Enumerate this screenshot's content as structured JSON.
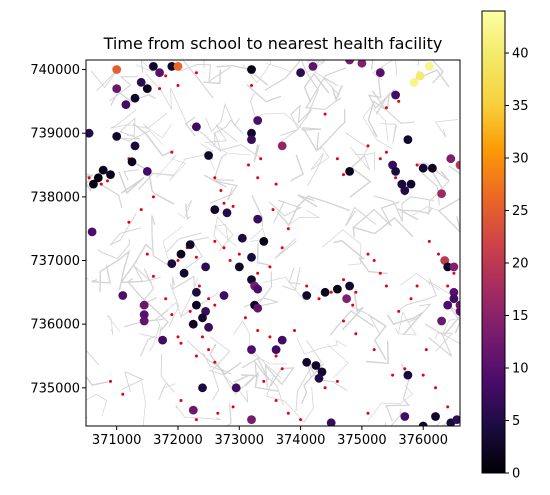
{
  "chart_data": {
    "type": "scatter",
    "title": "Time from school to nearest health facility",
    "xlabel": "",
    "ylabel": "",
    "xlim": [
      370500,
      376600
    ],
    "ylim": [
      734400,
      740150
    ],
    "xticks": [
      371000,
      372000,
      373000,
      374000,
      375000,
      376000
    ],
    "xtick_labels": [
      "371000",
      "372000",
      "373000",
      "374000",
      "375000",
      "376000"
    ],
    "yticks": [
      735000,
      736000,
      737000,
      738000,
      739000,
      740000
    ],
    "ytick_labels": [
      "735000",
      "736000",
      "737000",
      "738000",
      "739000",
      "740000"
    ],
    "background": "road network basemap (light grey)",
    "colorbar": {
      "colormap": "inferno",
      "range": [
        0,
        44
      ],
      "ticks": [
        0,
        5,
        10,
        15,
        20,
        25,
        30,
        35,
        40
      ],
      "tick_labels": [
        "0",
        "5",
        "10",
        "15",
        "20",
        "25",
        "30",
        "35",
        "40"
      ]
    },
    "health_facility_color": "#e8000b",
    "schools": [
      [
        371000,
        738950,
        3
      ],
      [
        370900,
        738350,
        2
      ],
      [
        370780,
        738420,
        2
      ],
      [
        370700,
        738300,
        1
      ],
      [
        370620,
        738200,
        1
      ],
      [
        370550,
        739000,
        5
      ],
      [
        370600,
        737450,
        9
      ],
      [
        371000,
        739700,
        12
      ],
      [
        371000,
        740000,
        25
      ],
      [
        371100,
        736450,
        9
      ],
      [
        371150,
        739450,
        8
      ],
      [
        371300,
        739550,
        3
      ],
      [
        371300,
        738800,
        4
      ],
      [
        371250,
        738550,
        2
      ],
      [
        371400,
        739800,
        6
      ],
      [
        371500,
        739700,
        2
      ],
      [
        371600,
        740050,
        3
      ],
      [
        371700,
        739950,
        10
      ],
      [
        371900,
        740050,
        3
      ],
      [
        372000,
        740050,
        26
      ],
      [
        371500,
        738400,
        8
      ],
      [
        371900,
        736950,
        4
      ],
      [
        372050,
        737100,
        2
      ],
      [
        372200,
        737250,
        3
      ],
      [
        371450,
        736300,
        12
      ],
      [
        371450,
        736150,
        10
      ],
      [
        371450,
        736050,
        11
      ],
      [
        371750,
        735750,
        8
      ],
      [
        372100,
        736800,
        3
      ],
      [
        372450,
        736900,
        6
      ],
      [
        372300,
        736500,
        4
      ],
      [
        372300,
        736300,
        2
      ],
      [
        372450,
        736200,
        7
      ],
      [
        372400,
        736100,
        3
      ],
      [
        372500,
        735950,
        7
      ],
      [
        372250,
        736000,
        2
      ],
      [
        372300,
        739100,
        8
      ],
      [
        372500,
        738650,
        3
      ],
      [
        372600,
        737800,
        3
      ],
      [
        372800,
        737750,
        5
      ],
      [
        372750,
        736450,
        8
      ],
      [
        372400,
        735000,
        4
      ],
      [
        372250,
        734650,
        12
      ],
      [
        373200,
        739000,
        3
      ],
      [
        373200,
        738900,
        7
      ],
      [
        373300,
        739200,
        9
      ],
      [
        373300,
        737650,
        7
      ],
      [
        373200,
        736700,
        3
      ],
      [
        373250,
        736600,
        13
      ],
      [
        373300,
        736550,
        9
      ],
      [
        373250,
        736300,
        2
      ],
      [
        373300,
        736250,
        11
      ],
      [
        373000,
        736900,
        2
      ],
      [
        373200,
        737050,
        4
      ],
      [
        373050,
        737350,
        4
      ],
      [
        373400,
        737300,
        1
      ],
      [
        373200,
        740000,
        1
      ],
      [
        373700,
        738800,
        16
      ],
      [
        373700,
        735750,
        8
      ],
      [
        373600,
        735600,
        8
      ],
      [
        373200,
        735600,
        9
      ],
      [
        372950,
        735000,
        8
      ],
      [
        373200,
        734500,
        13
      ],
      [
        374000,
        739950,
        6
      ],
      [
        374200,
        740050,
        11
      ],
      [
        374100,
        736450,
        3
      ],
      [
        374400,
        736500,
        2
      ],
      [
        374600,
        736550,
        1
      ],
      [
        374800,
        736600,
        3
      ],
      [
        374750,
        736400,
        14
      ],
      [
        374100,
        735400,
        3
      ],
      [
        374250,
        735350,
        3
      ],
      [
        374350,
        735250,
        3
      ],
      [
        374300,
        735150,
        5
      ],
      [
        374500,
        734450,
        7
      ],
      [
        374800,
        738400,
        2
      ],
      [
        374800,
        740150,
        13
      ],
      [
        375000,
        740100,
        14
      ],
      [
        375300,
        739950,
        10
      ],
      [
        375550,
        739600,
        8
      ],
      [
        375500,
        738500,
        7
      ],
      [
        375550,
        738400,
        4
      ],
      [
        375650,
        738200,
        4
      ],
      [
        375700,
        738100,
        5
      ],
      [
        375800,
        738200,
        3
      ],
      [
        375750,
        738900,
        3
      ],
      [
        375850,
        739800,
        42
      ],
      [
        375950,
        739900,
        40
      ],
      [
        376100,
        740050,
        42
      ],
      [
        376000,
        738450,
        3
      ],
      [
        376150,
        738450,
        2
      ],
      [
        376450,
        738600,
        14
      ],
      [
        376300,
        738050,
        17
      ],
      [
        376350,
        737000,
        20
      ],
      [
        376400,
        736900,
        2
      ],
      [
        376500,
        736900,
        14
      ],
      [
        376500,
        736500,
        10
      ],
      [
        376400,
        736300,
        9
      ],
      [
        376500,
        736400,
        8
      ],
      [
        376600,
        736200,
        10
      ],
      [
        376300,
        736050,
        12
      ],
      [
        376600,
        736300,
        12
      ],
      [
        375750,
        735200,
        4
      ],
      [
        375700,
        734550,
        8
      ],
      [
        376200,
        734550,
        3
      ],
      [
        376450,
        734450,
        4
      ],
      [
        376000,
        734400,
        3
      ],
      [
        376550,
        734500,
        6
      ],
      [
        376600,
        738500,
        20
      ]
    ],
    "health_facilities": [
      [
        370550,
        738300
      ],
      [
        370750,
        738200
      ],
      [
        370850,
        738250
      ],
      [
        371200,
        738600
      ],
      [
        371700,
        739700
      ],
      [
        371800,
        739900
      ],
      [
        372000,
        739750
      ],
      [
        372300,
        739950
      ],
      [
        371900,
        738700
      ],
      [
        372150,
        737200
      ],
      [
        372000,
        737000
      ],
      [
        372300,
        737050
      ],
      [
        372200,
        736200
      ],
      [
        372350,
        736600
      ],
      [
        372500,
        736400
      ],
      [
        372600,
        736300
      ],
      [
        372200,
        736000
      ],
      [
        372400,
        735800
      ],
      [
        372500,
        735600
      ],
      [
        372600,
        735400
      ],
      [
        372300,
        735500
      ],
      [
        372050,
        735700
      ],
      [
        372600,
        738300
      ],
      [
        372700,
        738100
      ],
      [
        372750,
        737900
      ],
      [
        372900,
        737850
      ],
      [
        372600,
        737300
      ],
      [
        372750,
        737200
      ],
      [
        372850,
        737000
      ],
      [
        373000,
        737100
      ],
      [
        373050,
        736900
      ],
      [
        373300,
        736800
      ],
      [
        373500,
        736900
      ],
      [
        373700,
        737200
      ],
      [
        373800,
        737500
      ],
      [
        373550,
        737800
      ],
      [
        373350,
        738600
      ],
      [
        373150,
        738500
      ],
      [
        373300,
        738300
      ],
      [
        373600,
        738200
      ],
      [
        373100,
        736100
      ],
      [
        373300,
        735900
      ],
      [
        373500,
        735800
      ],
      [
        373600,
        735500
      ],
      [
        373700,
        735300
      ],
      [
        373400,
        735100
      ],
      [
        373600,
        734800
      ],
      [
        373800,
        734600
      ],
      [
        374000,
        734500
      ],
      [
        374300,
        735300
      ],
      [
        374400,
        735000
      ],
      [
        374600,
        735100
      ],
      [
        374100,
        736600
      ],
      [
        374300,
        736400
      ],
      [
        374500,
        736500
      ],
      [
        374700,
        736700
      ],
      [
        374900,
        736500
      ],
      [
        374850,
        736300
      ],
      [
        375100,
        737100
      ],
      [
        375200,
        737000
      ],
      [
        375300,
        736800
      ],
      [
        375400,
        736600
      ],
      [
        375600,
        736200
      ],
      [
        375800,
        736400
      ],
      [
        375900,
        736600
      ],
      [
        374600,
        738600
      ],
      [
        374700,
        738350
      ],
      [
        375100,
        738800
      ],
      [
        375300,
        738600
      ],
      [
        375400,
        738700
      ],
      [
        375550,
        738300
      ],
      [
        375700,
        738050
      ],
      [
        375900,
        738500
      ],
      [
        376050,
        738450
      ],
      [
        376100,
        737300
      ],
      [
        376250,
        737100
      ],
      [
        376400,
        737000
      ],
      [
        376500,
        736800
      ],
      [
        376400,
        736600
      ],
      [
        375700,
        735300
      ],
      [
        376000,
        735200
      ],
      [
        376200,
        735000
      ],
      [
        376400,
        734700
      ],
      [
        376050,
        735600
      ],
      [
        375500,
        735200
      ],
      [
        375200,
        735600
      ],
      [
        374900,
        735850
      ],
      [
        374700,
        736050
      ],
      [
        375400,
        739400
      ],
      [
        375600,
        739500
      ],
      [
        374400,
        739300
      ],
      [
        375100,
        734600
      ],
      [
        374800,
        734200
      ],
      [
        374200,
        734300
      ],
      [
        373900,
        735900
      ],
      [
        371500,
        737100
      ],
      [
        371600,
        736750
      ],
      [
        371800,
        736400
      ],
      [
        371900,
        736150
      ],
      [
        372000,
        735800
      ],
      [
        371200,
        737600
      ],
      [
        371400,
        737800
      ],
      [
        371600,
        738000
      ],
      [
        372050,
        734800
      ],
      [
        372300,
        734500
      ],
      [
        372650,
        734600
      ],
      [
        372900,
        734700
      ],
      [
        370900,
        735100
      ],
      [
        371100,
        734900
      ],
      [
        373200,
        739750
      ]
    ]
  }
}
